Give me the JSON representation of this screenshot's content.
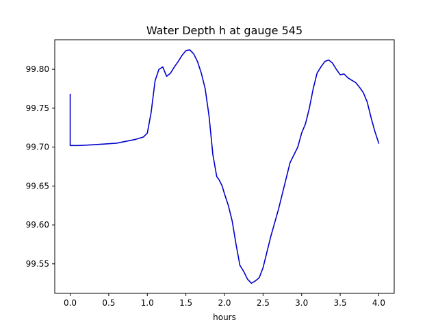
{
  "chart_data": {
    "type": "line",
    "title": "Water Depth h at gauge 545",
    "xlabel": "hours",
    "ylabel": "",
    "xlim": [
      -0.2,
      4.2
    ],
    "ylim": [
      99.512,
      99.838
    ],
    "xticks": [
      0.0,
      0.5,
      1.0,
      1.5,
      2.0,
      2.5,
      3.0,
      3.5,
      4.0
    ],
    "xtick_labels": [
      "0.0",
      "0.5",
      "1.0",
      "1.5",
      "2.0",
      "2.5",
      "3.0",
      "3.5",
      "4.0"
    ],
    "yticks": [
      99.55,
      99.6,
      99.65,
      99.7,
      99.75,
      99.8
    ],
    "ytick_labels": [
      "99.55",
      "99.60",
      "99.65",
      "99.70",
      "99.75",
      "99.80"
    ],
    "grid": false,
    "legend": "none",
    "series": [
      {
        "color": "#0000cc",
        "x": [
          0.0,
          0.0,
          0.1,
          0.3,
          0.6,
          0.7,
          0.85,
          0.95,
          1.0,
          1.05,
          1.1,
          1.15,
          1.2,
          1.25,
          1.3,
          1.35,
          1.4,
          1.45,
          1.5,
          1.55,
          1.6,
          1.65,
          1.7,
          1.75,
          1.8,
          1.85,
          1.9,
          1.93,
          1.97,
          2.0,
          2.05,
          2.1,
          2.15,
          2.2,
          2.25,
          2.3,
          2.35,
          2.4,
          2.45,
          2.5,
          2.55,
          2.6,
          2.7,
          2.8,
          2.85,
          2.9,
          2.95,
          3.0,
          3.05,
          3.1,
          3.15,
          3.2,
          3.25,
          3.3,
          3.35,
          3.4,
          3.45,
          3.5,
          3.55,
          3.6,
          3.65,
          3.7,
          3.75,
          3.8,
          3.85,
          3.9,
          3.95,
          4.0
        ],
        "y": [
          99.768,
          99.702,
          99.702,
          99.703,
          99.705,
          99.707,
          99.71,
          99.713,
          99.718,
          99.745,
          99.785,
          99.8,
          99.803,
          99.791,
          99.795,
          99.803,
          99.81,
          99.818,
          99.824,
          99.825,
          99.82,
          99.81,
          99.795,
          99.775,
          99.74,
          99.69,
          99.662,
          99.658,
          99.65,
          99.64,
          99.625,
          99.605,
          99.575,
          99.548,
          99.54,
          99.53,
          99.525,
          99.528,
          99.532,
          99.545,
          99.565,
          99.585,
          99.62,
          99.66,
          99.68,
          99.69,
          99.7,
          99.718,
          99.73,
          99.75,
          99.775,
          99.795,
          99.803,
          99.81,
          99.812,
          99.808,
          99.8,
          99.793,
          99.794,
          99.789,
          99.786,
          99.783,
          99.777,
          99.77,
          99.758,
          99.738,
          99.72,
          99.705
        ]
      }
    ]
  }
}
